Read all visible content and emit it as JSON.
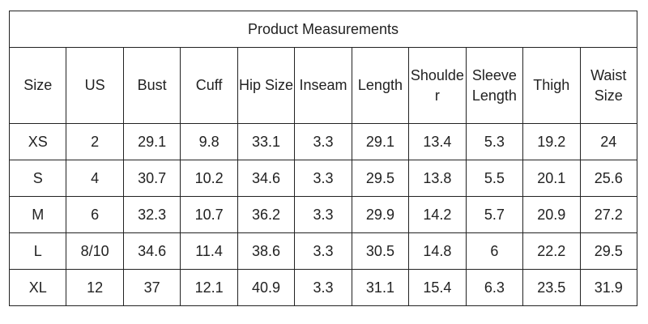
{
  "table": {
    "title": "Product Measurements",
    "header": [
      "Size",
      "US",
      "Bust",
      "Cuff",
      "Hip Size",
      "Inseam",
      "Length",
      "Shoulder",
      "Sleeve Length",
      "Thigh",
      "Waist Size"
    ],
    "rows": [
      [
        "XS",
        2,
        29.1,
        9.8,
        33.1,
        3.3,
        29.1,
        13.4,
        5.3,
        19.2,
        24
      ],
      [
        "S",
        4,
        30.7,
        10.2,
        34.6,
        3.3,
        29.5,
        13.8,
        5.5,
        20.1,
        25.6
      ],
      [
        "M",
        6,
        32.3,
        10.7,
        36.2,
        3.3,
        29.9,
        14.2,
        5.7,
        20.9,
        27.2
      ],
      [
        "L",
        "8/10",
        34.6,
        11.4,
        38.6,
        3.3,
        30.5,
        14.8,
        6,
        22.2,
        29.5
      ],
      [
        "XL",
        12,
        37,
        12.1,
        40.9,
        3.3,
        31.1,
        15.4,
        6.3,
        23.5,
        31.9
      ]
    ]
  }
}
